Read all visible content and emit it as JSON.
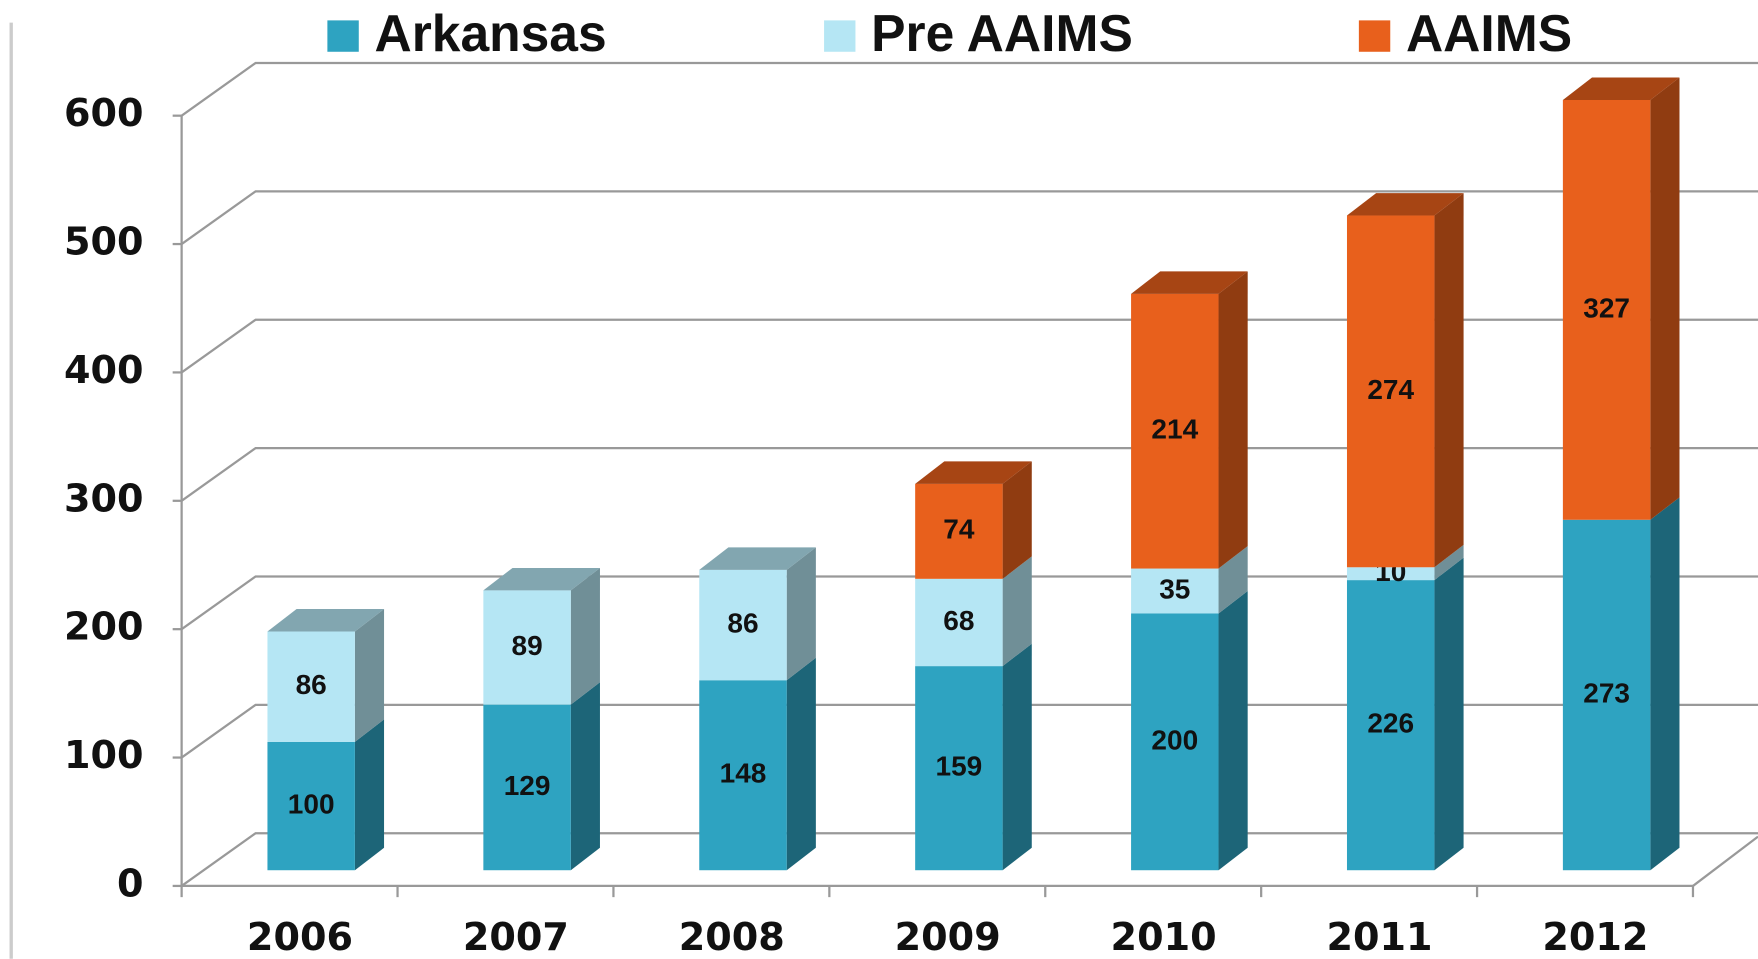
{
  "chart_data": {
    "type": "bar3d_stacked",
    "categories": [
      "2006",
      "2007",
      "2008",
      "2009",
      "2010",
      "2011",
      "2012"
    ],
    "series": [
      {
        "name": "Arkansas",
        "color": "#2ea3c1",
        "values": [
          100,
          129,
          148,
          159,
          200,
          226,
          273
        ]
      },
      {
        "name": "Pre AAIMS",
        "color": "#b5e6f4",
        "values": [
          86,
          89,
          86,
          68,
          35,
          10,
          null
        ]
      },
      {
        "name": "AAIMS",
        "color": "#e8601c",
        "values": [
          null,
          null,
          null,
          74,
          214,
          274,
          327
        ]
      }
    ],
    "ylim": [
      0,
      600
    ],
    "yticks": [
      0,
      100,
      200,
      300,
      400,
      500,
      600
    ],
    "grid": true,
    "legend": "top"
  }
}
